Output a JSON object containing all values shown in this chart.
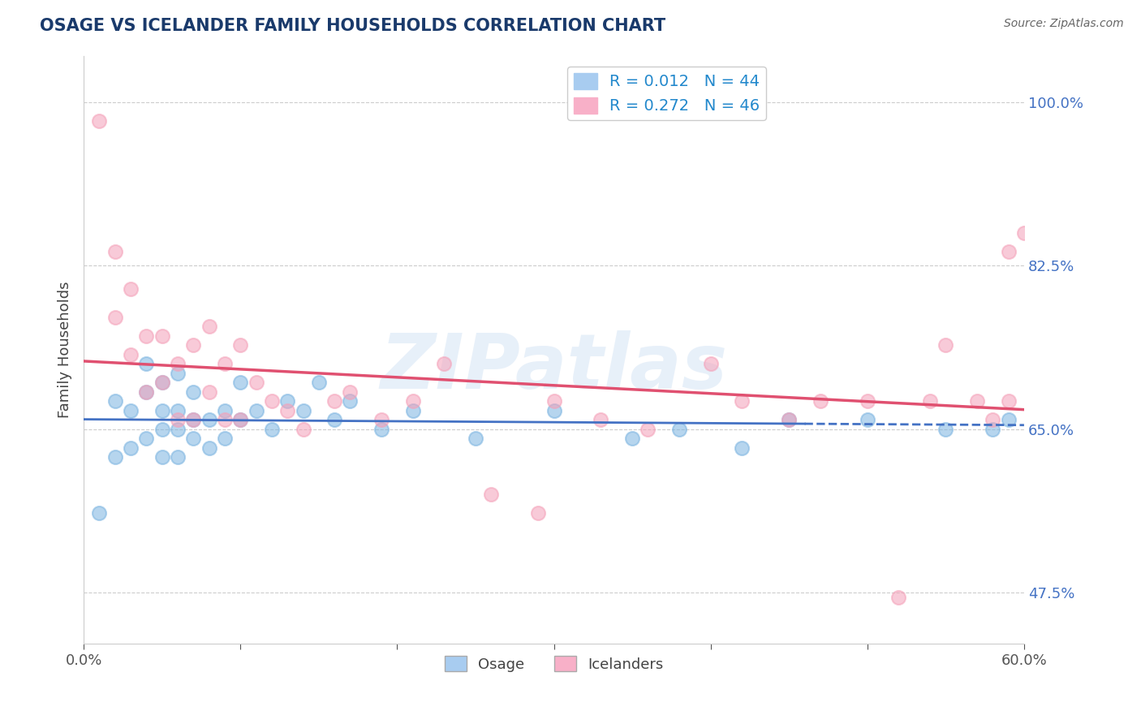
{
  "title": "OSAGE VS ICELANDER FAMILY HOUSEHOLDS CORRELATION CHART",
  "source_text": "Source: ZipAtlas.com",
  "ylabel": "Family Households",
  "xlim": [
    0.0,
    0.6
  ],
  "ylim": [
    0.42,
    1.05
  ],
  "yticks": [
    0.475,
    0.65,
    0.825,
    1.0
  ],
  "ytick_labels": [
    "47.5%",
    "65.0%",
    "82.5%",
    "100.0%"
  ],
  "xticks": [
    0.0,
    0.1,
    0.2,
    0.3,
    0.4,
    0.5,
    0.6
  ],
  "xtick_labels": [
    "0.0%",
    "",
    "",
    "",
    "",
    "",
    "60.0%"
  ],
  "title_color": "#1a3a6b",
  "title_fontsize": 15,
  "blue_color": "#7ab3e0",
  "pink_color": "#f4a0b8",
  "blue_line_color": "#4472c4",
  "pink_line_color": "#e05070",
  "blue_R": 0.012,
  "blue_N": 44,
  "pink_R": 0.272,
  "pink_N": 46,
  "legend_color": "#2288cc",
  "watermark": "ZIPatlas",
  "osage_x": [
    0.01,
    0.02,
    0.02,
    0.03,
    0.03,
    0.04,
    0.04,
    0.04,
    0.05,
    0.05,
    0.05,
    0.05,
    0.06,
    0.06,
    0.06,
    0.06,
    0.07,
    0.07,
    0.07,
    0.08,
    0.08,
    0.09,
    0.09,
    0.1,
    0.1,
    0.11,
    0.12,
    0.13,
    0.14,
    0.15,
    0.16,
    0.17,
    0.19,
    0.21,
    0.25,
    0.3,
    0.35,
    0.38,
    0.42,
    0.45,
    0.5,
    0.55,
    0.58,
    0.59
  ],
  "osage_y": [
    0.56,
    0.62,
    0.68,
    0.63,
    0.67,
    0.64,
    0.69,
    0.72,
    0.62,
    0.65,
    0.67,
    0.7,
    0.62,
    0.65,
    0.67,
    0.71,
    0.64,
    0.66,
    0.69,
    0.63,
    0.66,
    0.64,
    0.67,
    0.66,
    0.7,
    0.67,
    0.65,
    0.68,
    0.67,
    0.7,
    0.66,
    0.68,
    0.65,
    0.67,
    0.64,
    0.67,
    0.64,
    0.65,
    0.63,
    0.66,
    0.66,
    0.65,
    0.65,
    0.66
  ],
  "icelander_x": [
    0.01,
    0.02,
    0.02,
    0.03,
    0.03,
    0.04,
    0.04,
    0.05,
    0.05,
    0.06,
    0.06,
    0.07,
    0.07,
    0.08,
    0.08,
    0.09,
    0.09,
    0.1,
    0.1,
    0.11,
    0.12,
    0.13,
    0.14,
    0.16,
    0.17,
    0.19,
    0.21,
    0.23,
    0.26,
    0.29,
    0.3,
    0.33,
    0.36,
    0.4,
    0.42,
    0.45,
    0.47,
    0.5,
    0.52,
    0.54,
    0.55,
    0.57,
    0.58,
    0.59,
    0.59,
    0.6
  ],
  "icelander_y": [
    0.98,
    0.77,
    0.84,
    0.73,
    0.8,
    0.69,
    0.75,
    0.7,
    0.75,
    0.66,
    0.72,
    0.66,
    0.74,
    0.69,
    0.76,
    0.66,
    0.72,
    0.66,
    0.74,
    0.7,
    0.68,
    0.67,
    0.65,
    0.68,
    0.69,
    0.66,
    0.68,
    0.72,
    0.58,
    0.56,
    0.68,
    0.66,
    0.65,
    0.72,
    0.68,
    0.66,
    0.68,
    0.68,
    0.47,
    0.68,
    0.74,
    0.68,
    0.66,
    0.84,
    0.68,
    0.86
  ],
  "background_color": "#ffffff",
  "grid_color": "#cccccc"
}
